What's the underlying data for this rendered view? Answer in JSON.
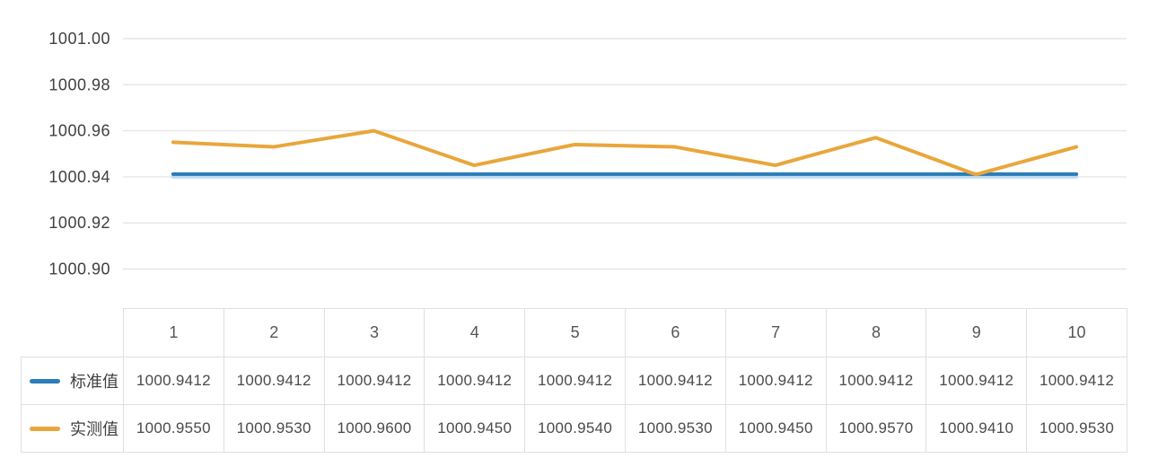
{
  "chart_data": {
    "type": "line",
    "x": [
      1,
      2,
      3,
      4,
      5,
      6,
      7,
      8,
      9,
      10
    ],
    "series": [
      {
        "name": "标准值",
        "color": "#2b7cb9",
        "values": [
          1000.9412,
          1000.9412,
          1000.9412,
          1000.9412,
          1000.9412,
          1000.9412,
          1000.9412,
          1000.9412,
          1000.9412,
          1000.9412
        ]
      },
      {
        "name": "实测值",
        "color": "#e9a63b",
        "values": [
          1000.955,
          1000.953,
          1000.96,
          1000.945,
          1000.954,
          1000.953,
          1000.945,
          1000.957,
          1000.941,
          1000.953
        ]
      }
    ],
    "title": "",
    "xlabel": "",
    "ylabel": "",
    "y_tick_labels": [
      "1001.00",
      "1000.98",
      "1000.96",
      "1000.94",
      "1000.92",
      "1000.90"
    ],
    "ylim": [
      1000.9,
      1001.0
    ],
    "grid": true,
    "legend_position": "table-row-headers"
  },
  "table": {
    "column_headers": [
      "1",
      "2",
      "3",
      "4",
      "5",
      "6",
      "7",
      "8",
      "9",
      "10"
    ],
    "rows": [
      {
        "label": "标准值",
        "swatch_color": "#2b7cb9",
        "values": [
          "1000.9412",
          "1000.9412",
          "1000.9412",
          "1000.9412",
          "1000.9412",
          "1000.9412",
          "1000.9412",
          "1000.9412",
          "1000.9412",
          "1000.9412"
        ]
      },
      {
        "label": "实测值",
        "swatch_color": "#e9a63b",
        "values": [
          "1000.9550",
          "1000.9530",
          "1000.9600",
          "1000.9450",
          "1000.9540",
          "1000.9530",
          "1000.9450",
          "1000.9570",
          "1000.9410",
          "1000.9530"
        ]
      }
    ]
  },
  "colors": {
    "standard_line": "#2b7cb9",
    "measured_line": "#e9a63b",
    "standard_line_halo": "#bcdcf2",
    "gridline": "#e5e5e5",
    "table_border": "#e0e0e0",
    "axis_text": "#3f3f3f"
  }
}
